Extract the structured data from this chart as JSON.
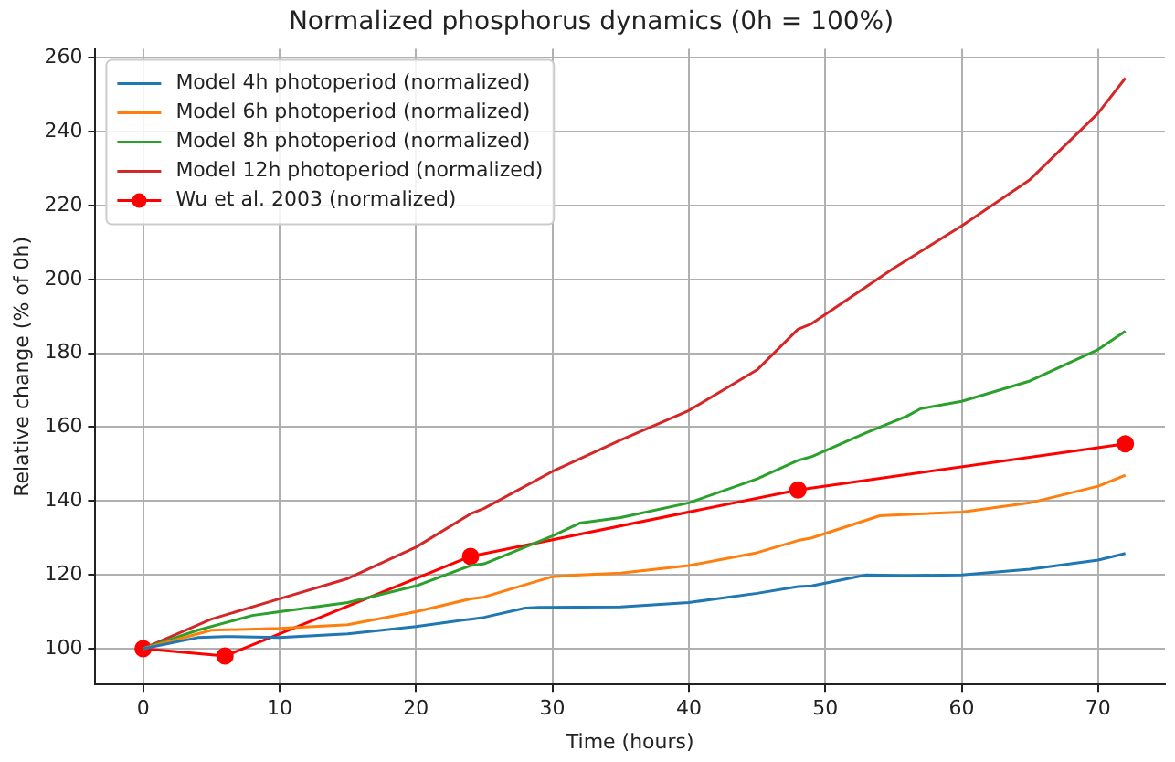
{
  "chart_data": {
    "type": "line",
    "title": "Normalized phosphorus dynamics (0h = 100%)",
    "xlabel": "Time (hours)",
    "ylabel": "Relative change (% of 0h)",
    "xlim": [
      -3.5,
      74.9
    ],
    "ylim": [
      90.3,
      262.4
    ],
    "xticks": [
      0,
      10,
      20,
      30,
      40,
      50,
      60,
      70
    ],
    "yticks": [
      100,
      120,
      140,
      160,
      180,
      200,
      220,
      240,
      260
    ],
    "grid": true,
    "legend": "top left",
    "line_style": "solid",
    "series": [
      {
        "name": "Model 4h photoperiod (normalized)",
        "color": "#1f77b4",
        "marker": "none",
        "x": [
          0,
          4,
          6,
          10,
          15,
          20,
          24,
          25,
          28,
          29,
          35,
          40,
          45,
          48,
          49,
          53,
          56,
          60,
          65,
          70,
          72
        ],
        "values": [
          100,
          103,
          103.3,
          103,
          104,
          106,
          108,
          108.5,
          111,
          111.2,
          111.3,
          112.5,
          115,
          116.8,
          117,
          120,
          119.8,
          120,
          121.5,
          124,
          125.8
        ]
      },
      {
        "name": "Model 6h photoperiod (normalized)",
        "color": "#ff7f0e",
        "marker": "none",
        "x": [
          0,
          5,
          10,
          15,
          20,
          24,
          25,
          30,
          32,
          35,
          40,
          45,
          48,
          49,
          54,
          55,
          60,
          65,
          70,
          72
        ],
        "values": [
          100,
          105,
          105.5,
          106.5,
          110,
          113.5,
          114,
          119.5,
          120,
          120.5,
          122.5,
          126,
          129.3,
          130,
          136,
          136.2,
          137,
          139.5,
          144,
          147
        ]
      },
      {
        "name": "Model 8h photoperiod (normalized)",
        "color": "#2ca02c",
        "marker": "none",
        "x": [
          0,
          4,
          8,
          10,
          15,
          20,
          24,
          25,
          30,
          32,
          35,
          40,
          45,
          48,
          49,
          53,
          56,
          57,
          60,
          65,
          70,
          72
        ],
        "values": [
          100,
          105,
          109,
          110,
          112.5,
          117,
          122.5,
          123,
          130.5,
          134,
          135.5,
          139.5,
          146,
          151,
          152,
          158.5,
          163,
          165,
          167,
          172.5,
          181,
          186
        ]
      },
      {
        "name": "Model 12h photoperiod (normalized)",
        "color": "#d62728",
        "marker": "none",
        "x": [
          0,
          5,
          10,
          15,
          20,
          24,
          25,
          30,
          35,
          40,
          45,
          48,
          49,
          55,
          60,
          65,
          70,
          72
        ],
        "values": [
          100,
          108,
          113.5,
          119,
          127.5,
          136.5,
          138,
          148,
          156.5,
          164.5,
          175.5,
          186.5,
          188,
          203,
          214.5,
          227,
          245,
          254.5
        ]
      },
      {
        "name": "Wu et al. 2003 (normalized)",
        "color": "#ff0000",
        "marker": "circle",
        "x": [
          0,
          6,
          24,
          48,
          72
        ],
        "values": [
          100,
          98,
          125,
          143,
          155.5
        ]
      }
    ]
  }
}
